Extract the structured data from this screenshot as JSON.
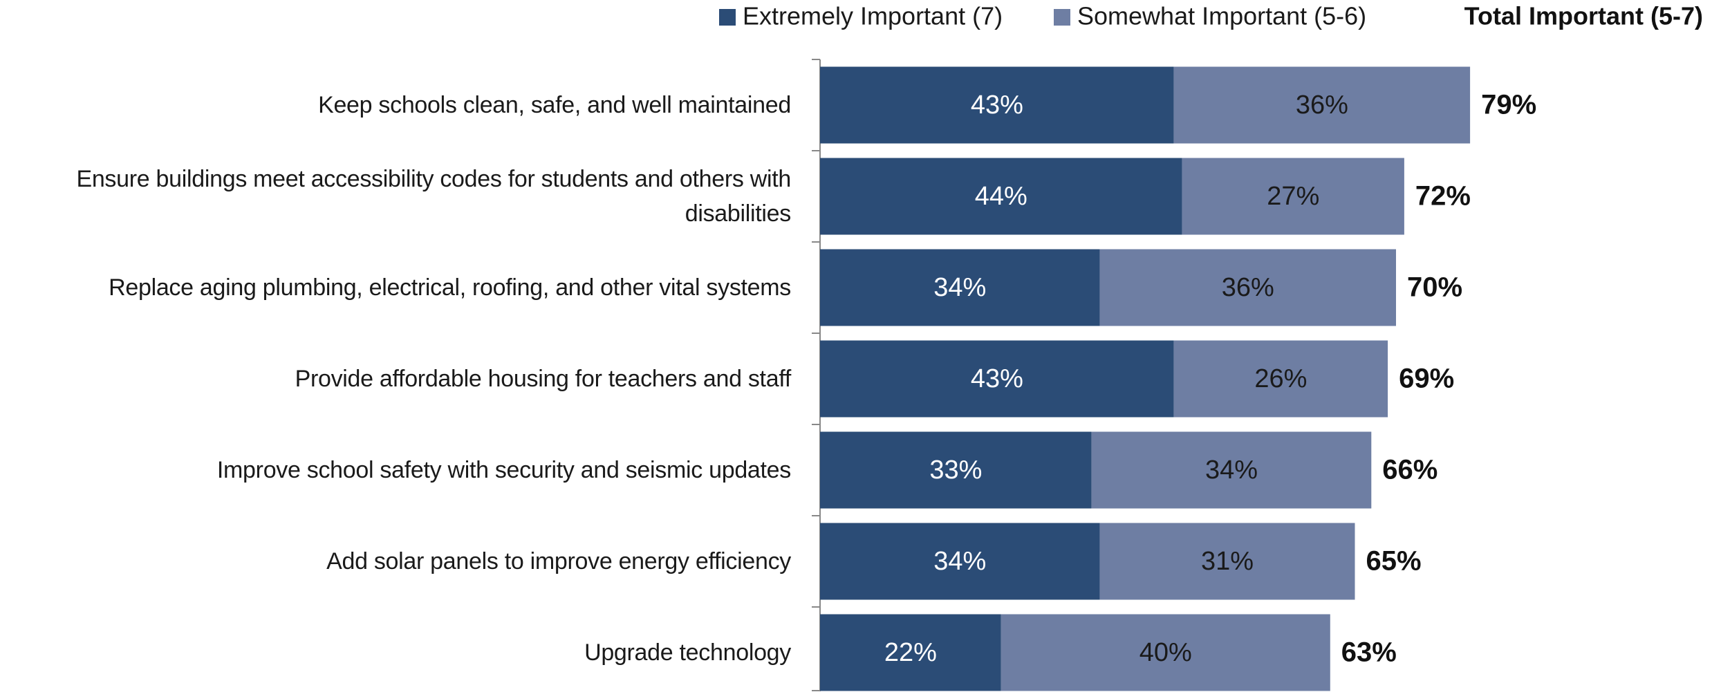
{
  "chart_data": {
    "type": "stacked_barh",
    "categories": [
      "Keep schools clean, safe, and well maintained",
      "Ensure buildings meet accessibility codes for students and others with disabilities",
      "Replace aging plumbing, electrical, roofing, and other vital systems",
      "Provide affordable housing for teachers and staff",
      "Improve school safety with security and seismic updates",
      "Add solar panels to improve energy efficiency",
      "Upgrade technology"
    ],
    "series": [
      {
        "name": "Extremely Important (7)",
        "color": "#2b4c76",
        "text_color": "#ffffff",
        "values": [
          43,
          44,
          34,
          43,
          33,
          34,
          22
        ],
        "value_labels": [
          "43%",
          "44%",
          "34%",
          "43%",
          "33%",
          "34%",
          "22%"
        ]
      },
      {
        "name": "Somewhat Important (5-6)",
        "color": "#6e7ea3",
        "text_color": "#1a1a1a",
        "values": [
          36,
          27,
          36,
          26,
          34,
          31,
          40
        ],
        "value_labels": [
          "36%",
          "27%",
          "36%",
          "26%",
          "34%",
          "31%",
          "40%"
        ]
      }
    ],
    "total": {
      "name": "Total Important (5-7)",
      "values": [
        79,
        72,
        70,
        69,
        66,
        65,
        63
      ],
      "value_labels": [
        "79%",
        "72%",
        "70%",
        "69%",
        "66%",
        "65%",
        "63%"
      ]
    },
    "xlim": [
      0,
      100
    ],
    "legend": "top"
  }
}
